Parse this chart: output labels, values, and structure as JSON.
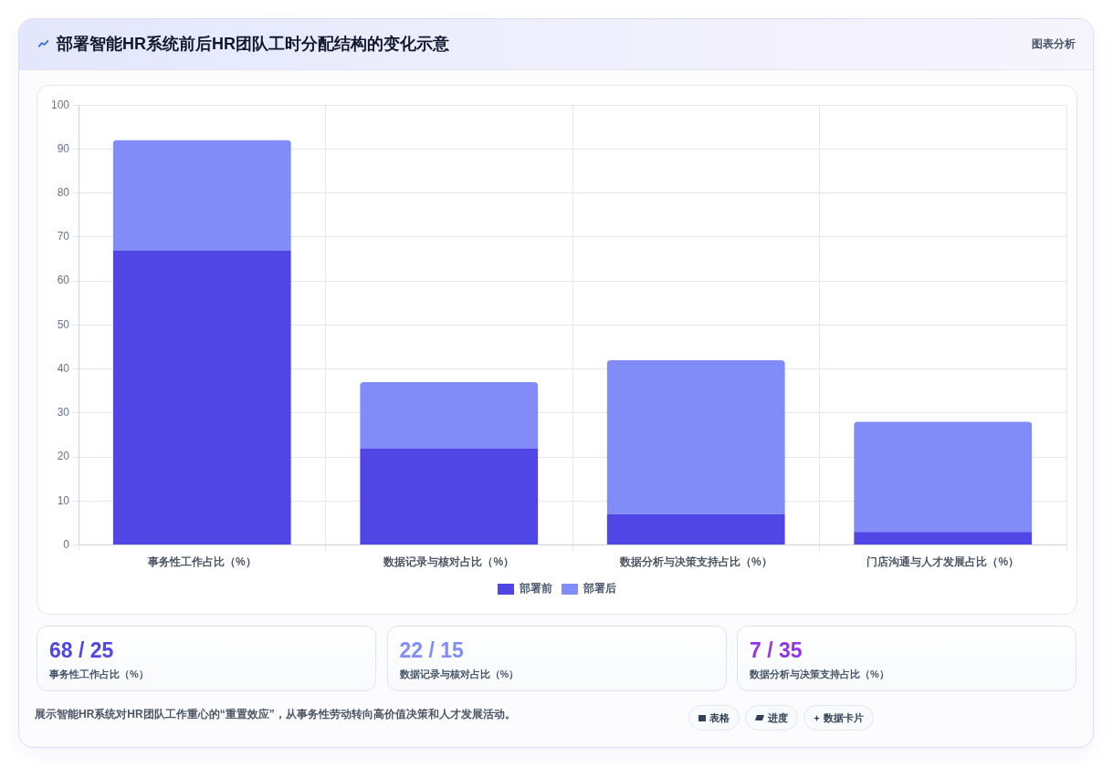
{
  "chart_data": [
    {
      "type": "bar",
      "title": "部署智能HR系统前后HR团队工时分配结构的变化示意",
      "categories": [
        "事务性工作占比（%）",
        "数据记录与核对占比（%）",
        "数据分析与决策支持占比（%）",
        "门店沟通与人才发展占比（%）"
      ],
      "series": [
        {
          "name": "部署前",
          "color": "#4f46e5",
          "values": [
            67,
            22,
            7,
            3
          ]
        },
        {
          "name": "部署后",
          "color": "#818cf8",
          "values": [
            25,
            15,
            35,
            25
          ]
        }
      ],
      "stacked": true,
      "ylim": [
        0,
        100
      ],
      "yticks": [
        0,
        10,
        20,
        30,
        40,
        50,
        60,
        70,
        80,
        90,
        100
      ],
      "grid": true,
      "legend": "bottom",
      "annotations": [
        "图表分析",
        "展示智能HR系统对HR团队工作重心的“重置效应”，从事务性劳动转向高价值决策和人才发展活动。",
        "表格",
        "进度",
        "数据卡片"
      ]
    },
    {
      "type": "other",
      "title": "68 / 25",
      "subtitle": "事务性工作占比（%）",
      "color": "#4f46e5"
    },
    {
      "type": "other",
      "title": "22 / 15",
      "subtitle": "数据记录与核对占比（%）",
      "color": "#818cf8"
    },
    {
      "type": "other",
      "title": "7 / 35",
      "subtitle": "数据分析与决策支持占比（%）",
      "color": "#9333ea"
    }
  ]
}
